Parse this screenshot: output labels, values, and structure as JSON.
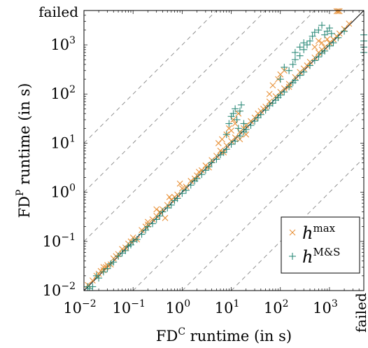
{
  "chart_data": {
    "type": "scatter",
    "xlabel": {
      "base": "FD",
      "sup": "C",
      "rest": " runtime (in s)"
    },
    "ylabel": {
      "base": "FD",
      "sup": "P",
      "rest": " runtime (in s)"
    },
    "scale": "log",
    "xlim": [
      0.01,
      5000
    ],
    "ylim": [
      0.01,
      5000
    ],
    "tick_exponents": [
      -2,
      -1,
      0,
      1,
      2,
      3
    ],
    "tick_base": "10",
    "failed_label": "failed",
    "grid": false,
    "reference_lines": "diagonal y=x (solid) and factors 10, 100, 1000 (dashed)",
    "legend_position": "bottom-right",
    "series": [
      {
        "name": "h^max",
        "legend": {
          "base": "h",
          "sup": "max"
        },
        "marker": "x",
        "color": "#e8923a",
        "points": [
          [
            0.012,
            0.013
          ],
          [
            0.015,
            0.016
          ],
          [
            0.018,
            0.02
          ],
          [
            0.02,
            0.022
          ],
          [
            0.022,
            0.025
          ],
          [
            0.025,
            0.026
          ],
          [
            0.028,
            0.03
          ],
          [
            0.03,
            0.033
          ],
          [
            0.035,
            0.034
          ],
          [
            0.04,
            0.045
          ],
          [
            0.05,
            0.055
          ],
          [
            0.06,
            0.07
          ],
          [
            0.07,
            0.075
          ],
          [
            0.08,
            0.09
          ],
          [
            0.1,
            0.12
          ],
          [
            0.12,
            0.11
          ],
          [
            0.15,
            0.17
          ],
          [
            0.18,
            0.2
          ],
          [
            0.2,
            0.22
          ],
          [
            0.25,
            0.28
          ],
          [
            0.3,
            0.33
          ],
          [
            0.35,
            0.4
          ],
          [
            0.4,
            0.45
          ],
          [
            0.5,
            0.55
          ],
          [
            0.6,
            0.7
          ],
          [
            0.7,
            0.8
          ],
          [
            0.8,
            0.9
          ],
          [
            1.0,
            1.2
          ],
          [
            1.2,
            1.3
          ],
          [
            1.5,
            1.7
          ],
          [
            0.45,
            0.3
          ],
          [
            0.55,
            0.8
          ],
          [
            0.3,
            0.45
          ],
          [
            0.9,
            1.5
          ],
          [
            2.0,
            2.2
          ],
          [
            2.5,
            2.8
          ],
          [
            3.0,
            3.5
          ],
          [
            3.5,
            3.2
          ],
          [
            4.0,
            4.5
          ],
          [
            5.0,
            5.5
          ],
          [
            6.0,
            7.0
          ],
          [
            7.0,
            6.5
          ],
          [
            8.0,
            9.0
          ],
          [
            10,
            11
          ],
          [
            12,
            13
          ],
          [
            15,
            17
          ],
          [
            18,
            20
          ],
          [
            20,
            23
          ],
          [
            25,
            28
          ],
          [
            30,
            33
          ],
          [
            5.5,
            10
          ],
          [
            6.5,
            12
          ],
          [
            8,
            15
          ],
          [
            9,
            20
          ],
          [
            11,
            30
          ],
          [
            12,
            25
          ],
          [
            14,
            40
          ],
          [
            10,
            18
          ],
          [
            15,
            12
          ],
          [
            20,
            15
          ],
          [
            40,
            45
          ],
          [
            50,
            55
          ],
          [
            60,
            70
          ],
          [
            80,
            90
          ],
          [
            100,
            110
          ],
          [
            120,
            130
          ],
          [
            150,
            160
          ],
          [
            60,
            100
          ],
          [
            70,
            150
          ],
          [
            90,
            200
          ],
          [
            100,
            250
          ],
          [
            120,
            300
          ],
          [
            200,
            220
          ],
          [
            250,
            280
          ],
          [
            300,
            330
          ],
          [
            400,
            450
          ],
          [
            500,
            550
          ],
          [
            600,
            700
          ],
          [
            700,
            800
          ],
          [
            800,
            900
          ],
          [
            1000,
            1100
          ],
          [
            1200,
            1300
          ],
          [
            1400,
            1500
          ],
          [
            1600,
            1700
          ],
          [
            2000,
            2100
          ],
          [
            500,
            900
          ],
          [
            600,
            1200
          ],
          [
            700,
            1100
          ],
          [
            900,
            1300
          ],
          [
            2500,
            2700
          ],
          [
            0.025,
            0.03
          ],
          [
            0.045,
            0.05
          ],
          [
            0.09,
            0.1
          ],
          [
            0.2,
            0.25
          ],
          [
            1.8,
            1.9
          ],
          [
            2.2,
            2.6
          ],
          [
            35,
            40
          ],
          [
            45,
            50
          ],
          [
            150,
            140
          ],
          [
            350,
            380
          ]
        ],
        "failed_y_x": [
          1400,
          1600,
          1500
        ],
        "failed_x_y": []
      },
      {
        "name": "h^M&S",
        "legend": {
          "base": "h",
          "sup": "M&S"
        },
        "marker": "+",
        "color": "#2e8b7a",
        "points": [
          [
            0.012,
            0.012
          ],
          [
            0.013,
            0.011
          ],
          [
            0.015,
            0.012
          ],
          [
            0.018,
            0.02
          ],
          [
            0.02,
            0.018
          ],
          [
            0.025,
            0.024
          ],
          [
            0.03,
            0.028
          ],
          [
            0.035,
            0.035
          ],
          [
            0.04,
            0.038
          ],
          [
            0.05,
            0.05
          ],
          [
            0.06,
            0.058
          ],
          [
            0.07,
            0.065
          ],
          [
            0.08,
            0.08
          ],
          [
            0.09,
            0.085
          ],
          [
            0.1,
            0.1
          ],
          [
            0.12,
            0.11
          ],
          [
            0.15,
            0.14
          ],
          [
            0.18,
            0.17
          ],
          [
            0.2,
            0.2
          ],
          [
            0.25,
            0.23
          ],
          [
            0.3,
            0.28
          ],
          [
            0.35,
            0.33
          ],
          [
            0.4,
            0.4
          ],
          [
            0.5,
            0.48
          ],
          [
            0.6,
            0.55
          ],
          [
            0.7,
            0.68
          ],
          [
            0.8,
            0.75
          ],
          [
            1.0,
            0.95
          ],
          [
            1.2,
            1.1
          ],
          [
            1.5,
            1.4
          ],
          [
            1.8,
            1.7
          ],
          [
            2.0,
            1.9
          ],
          [
            2.5,
            2.3
          ],
          [
            3.0,
            2.8
          ],
          [
            3.5,
            3.3
          ],
          [
            4.0,
            4.0
          ],
          [
            5.0,
            4.7
          ],
          [
            6.0,
            5.8
          ],
          [
            7.0,
            6.5
          ],
          [
            8.0,
            7.5
          ],
          [
            10,
            9.5
          ],
          [
            12,
            11
          ],
          [
            15,
            14
          ],
          [
            18,
            17
          ],
          [
            20,
            19
          ],
          [
            25,
            23
          ],
          [
            30,
            28
          ],
          [
            35,
            33
          ],
          [
            40,
            38
          ],
          [
            50,
            47
          ],
          [
            8,
            15
          ],
          [
            9,
            25
          ],
          [
            10,
            35
          ],
          [
            11,
            40
          ],
          [
            12,
            50
          ],
          [
            13,
            30
          ],
          [
            14,
            20
          ],
          [
            15,
            45
          ],
          [
            16,
            60
          ],
          [
            18,
            25
          ],
          [
            60,
            58
          ],
          [
            70,
            65
          ],
          [
            80,
            75
          ],
          [
            90,
            85
          ],
          [
            100,
            95
          ],
          [
            120,
            110
          ],
          [
            150,
            140
          ],
          [
            180,
            170
          ],
          [
            200,
            190
          ],
          [
            250,
            240
          ],
          [
            100,
            200
          ],
          [
            120,
            350
          ],
          [
            150,
            300
          ],
          [
            180,
            400
          ],
          [
            200,
            500
          ],
          [
            250,
            600
          ],
          [
            300,
            800
          ],
          [
            350,
            1000
          ],
          [
            400,
            1200
          ],
          [
            450,
            1500
          ],
          [
            500,
            480
          ],
          [
            600,
            570
          ],
          [
            700,
            680
          ],
          [
            800,
            750
          ],
          [
            1000,
            950
          ],
          [
            1200,
            1100
          ],
          [
            1500,
            1400
          ],
          [
            2000,
            1900
          ],
          [
            300,
            280
          ],
          [
            400,
            380
          ],
          [
            500,
            1800
          ],
          [
            600,
            2000
          ],
          [
            700,
            2500
          ],
          [
            800,
            1600
          ],
          [
            900,
            1900
          ],
          [
            1000,
            2200
          ],
          [
            1100,
            1700
          ],
          [
            200,
            700
          ],
          [
            250,
            900
          ],
          [
            300,
            1100
          ]
        ],
        "failed_y_x": [],
        "failed_x_y": [
          1200,
          1600,
          900,
          700
        ]
      }
    ]
  }
}
